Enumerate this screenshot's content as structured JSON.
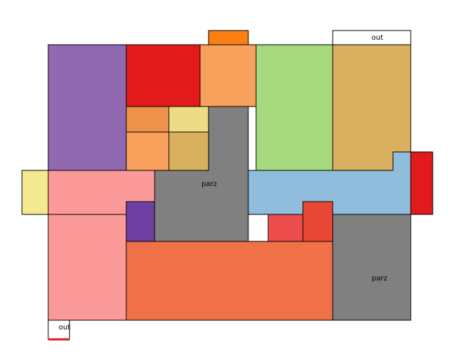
{
  "labels": {
    "out_top": "out",
    "parz_center": "parz",
    "parz_bottom_right": "parz",
    "out_bottom": "out"
  },
  "colors": {
    "purple": "#9169b0",
    "red": "#e31a1c",
    "orange_top": "#fb8011",
    "light_orange": "#f8a15c",
    "green": "#a6d97e",
    "tan": "#d9b05e",
    "burnt_orange": "#ee924b",
    "pale_yellow": "#eedb85",
    "gray": "#808080",
    "yellow": "#f5e98f",
    "pink": "#fb9a99",
    "light_blue": "#8fbddb",
    "dark_purple": "#6e3fa3",
    "coral_red": "#ec4e4e",
    "red_orange": "#e84735",
    "salmon": "#f07047",
    "white": "#ffffff",
    "accent_underline": "#e31a1c"
  }
}
